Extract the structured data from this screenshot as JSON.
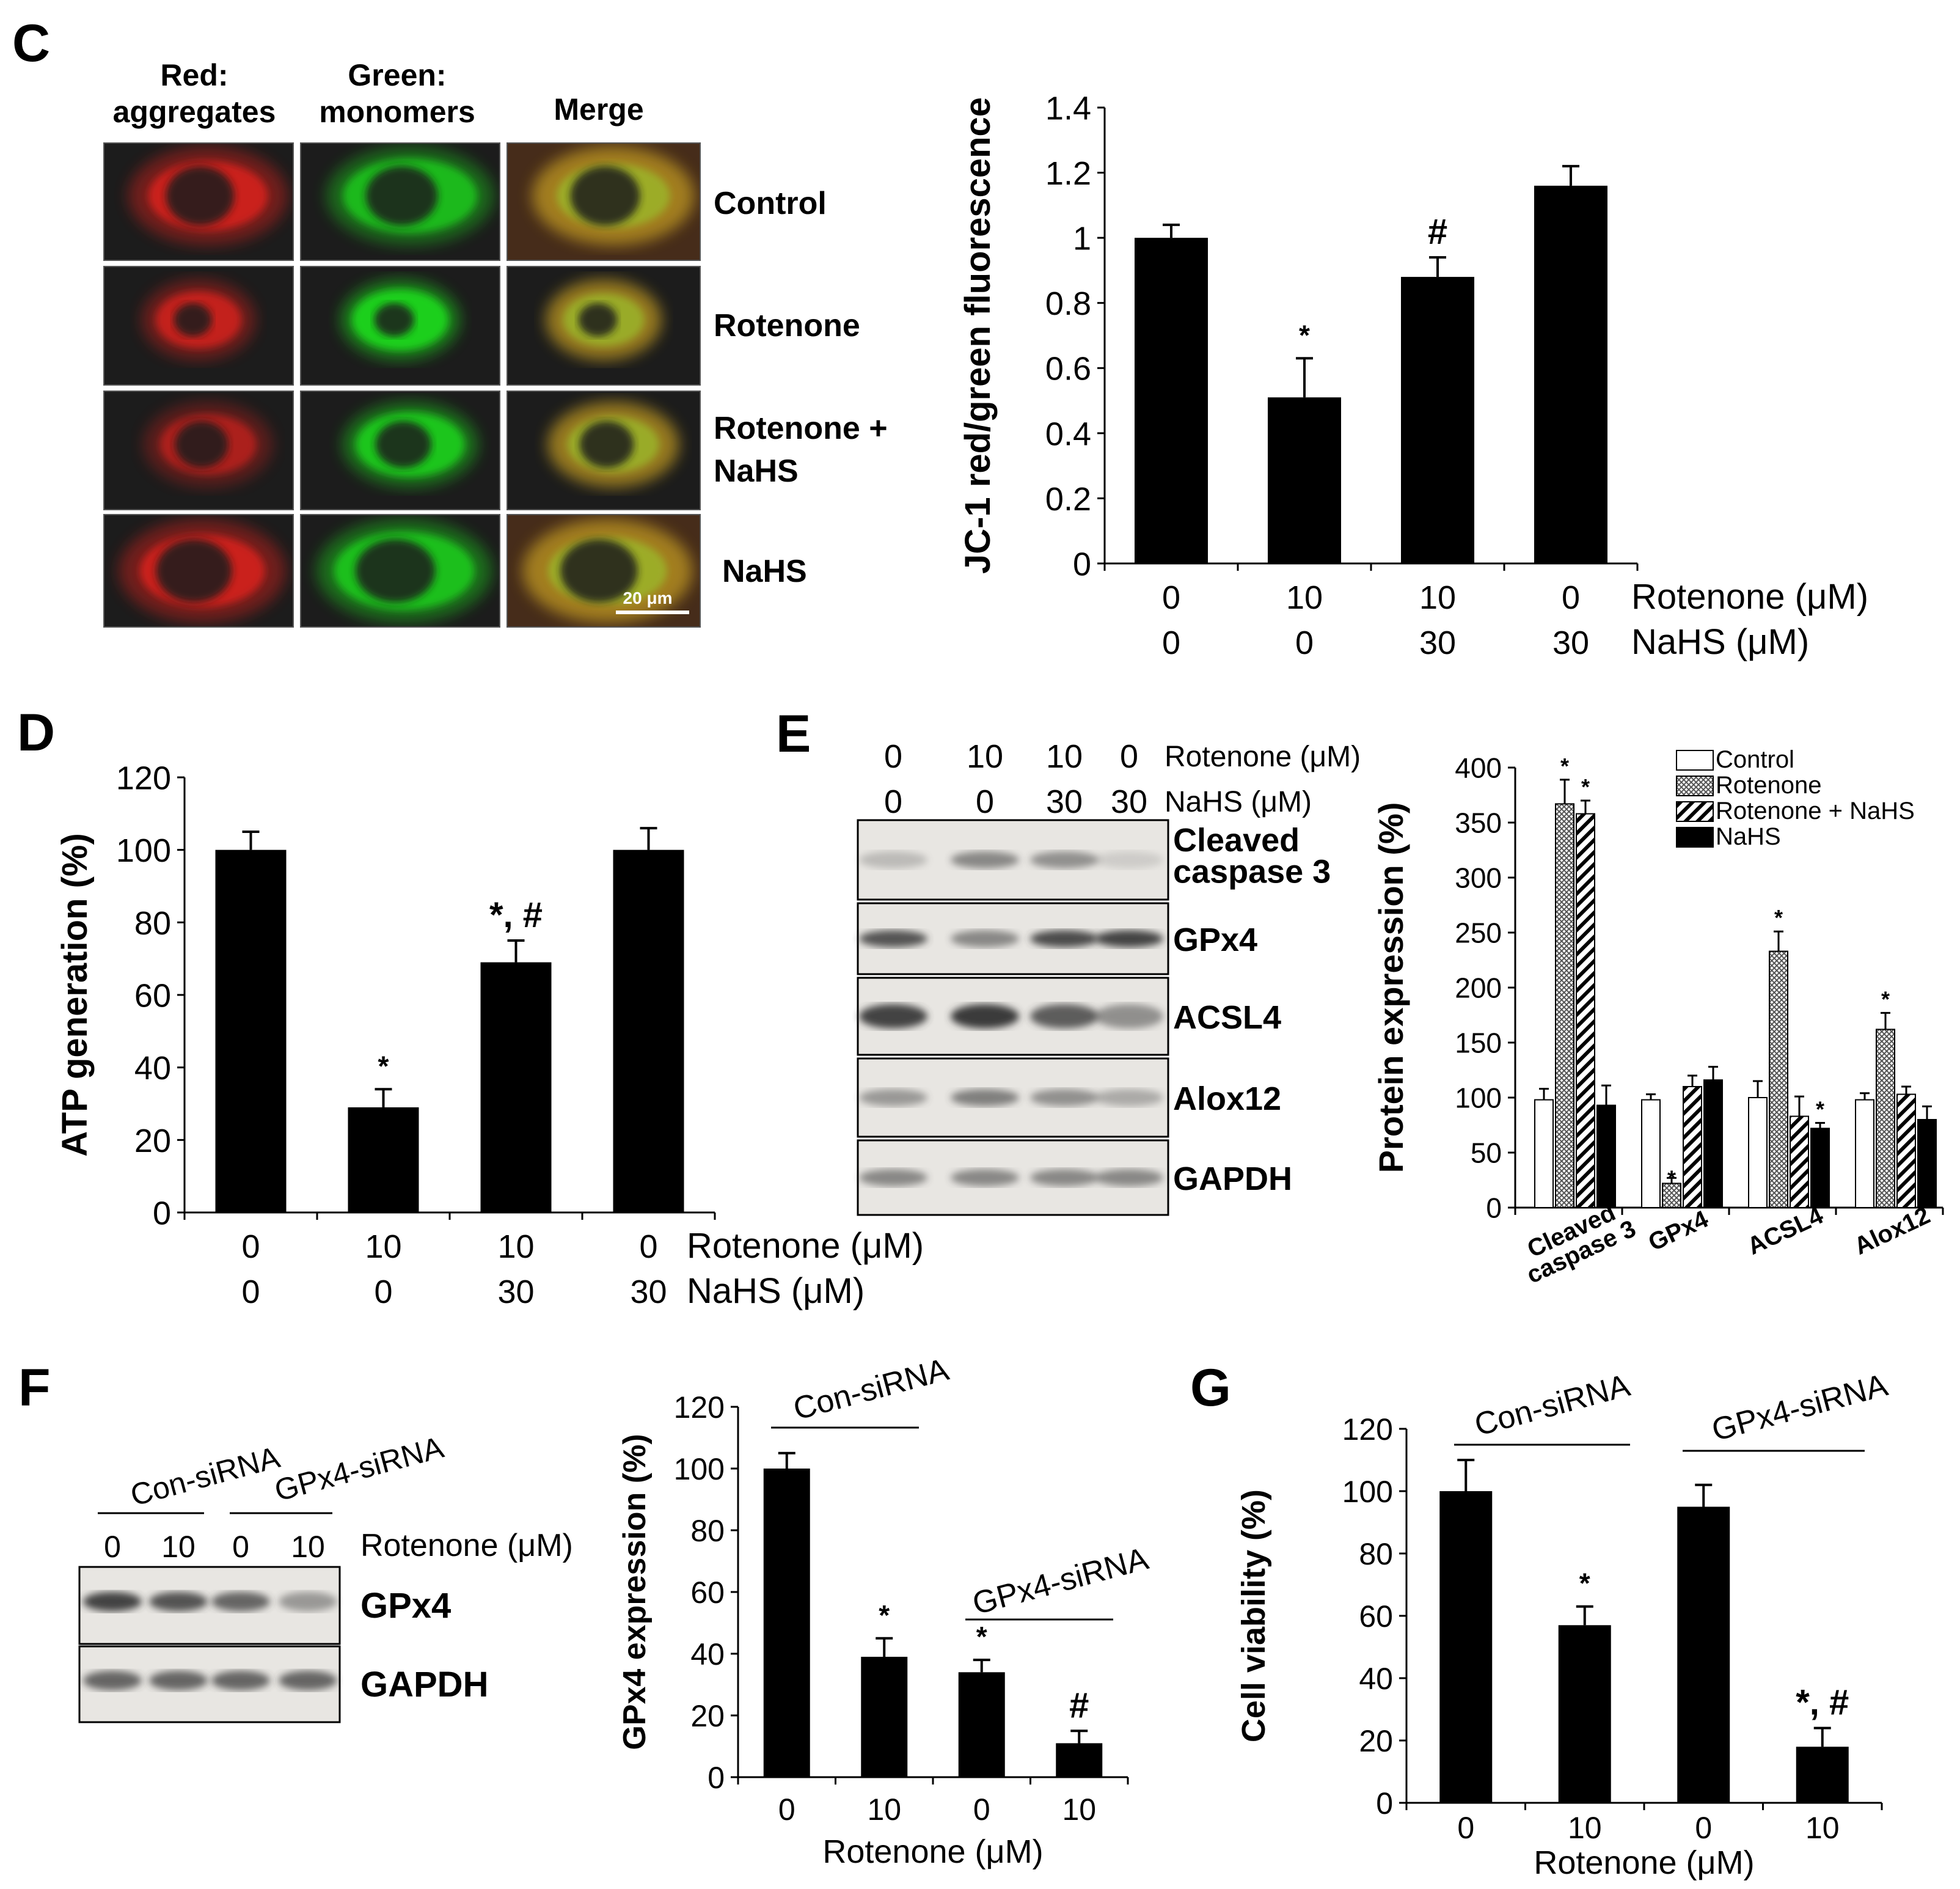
{
  "panels": {
    "C": {
      "letter": "C",
      "image_columns": [
        "Red:\naggregates",
        "Green:\nmonomers",
        "Merge"
      ],
      "row_labels": [
        "Control",
        "Rotenone",
        "Rotenone +\nNaHS",
        "NaHS"
      ],
      "scale_bar": "20 μm"
    },
    "D": {
      "letter": "D"
    },
    "E": {
      "letter": "E",
      "blot_conditions": [
        {
          "label": "Rotenone (μM)",
          "values": [
            "0",
            "10",
            "10",
            "0"
          ]
        },
        {
          "label": "NaHS (μM)",
          "values": [
            "0",
            "0",
            "30",
            "30"
          ]
        }
      ],
      "blot_labels": [
        "Cleaved\ncaspase 3",
        "GPx4",
        "ACSL4",
        "Alox12",
        "GAPDH"
      ]
    },
    "F": {
      "letter": "F",
      "blot_groups": [
        "Con-siRNA",
        "GPx4-siRNA"
      ],
      "blot_lanes": [
        "0",
        "10",
        "0",
        "10"
      ],
      "blot_condition_label": "Rotenone (μM)",
      "blot_labels": [
        "GPx4",
        "GAPDH"
      ]
    },
    "G": {
      "letter": "G"
    }
  },
  "chart_data": [
    {
      "id": "C",
      "type": "bar",
      "ylabel": "JC-1 red/green fluorescence",
      "ylim": [
        0,
        1.4
      ],
      "yticks": [
        "0",
        "0.2",
        "0.4",
        "0.6",
        "0.8",
        "1",
        "1.2",
        "1.4"
      ],
      "condition_rows": [
        {
          "label": "Rotenone (μM)",
          "values": [
            "0",
            "10",
            "10",
            "0"
          ]
        },
        {
          "label": "NaHS (μM)",
          "values": [
            "0",
            "0",
            "30",
            "30"
          ]
        }
      ],
      "values": [
        1.0,
        0.51,
        0.88,
        1.16
      ],
      "errors": [
        0.04,
        0.12,
        0.06,
        0.06
      ],
      "annotations": [
        "",
        "*",
        "#",
        ""
      ]
    },
    {
      "id": "D",
      "type": "bar",
      "ylabel": "ATP generation (%)",
      "ylim": [
        0,
        120
      ],
      "yticks": [
        "0",
        "20",
        "40",
        "60",
        "80",
        "100",
        "120"
      ],
      "condition_rows": [
        {
          "label": "Rotenone (μM)",
          "values": [
            "0",
            "10",
            "10",
            "0"
          ]
        },
        {
          "label": "NaHS (μM)",
          "values": [
            "0",
            "0",
            "30",
            "30"
          ]
        }
      ],
      "values": [
        100,
        29,
        69,
        100
      ],
      "errors": [
        5,
        5,
        6,
        6
      ],
      "annotations": [
        "",
        "*",
        "*, #",
        ""
      ]
    },
    {
      "id": "E",
      "type": "bar",
      "ylabel": "Protein expression (%)",
      "ylim": [
        0,
        400
      ],
      "yticks": [
        "0",
        "50",
        "100",
        "150",
        "200",
        "250",
        "300",
        "350",
        "400"
      ],
      "categories": [
        "Cleaved\ncaspase 3",
        "GPx4",
        "ACSL4",
        "Alox12"
      ],
      "legend": "top-right",
      "series": [
        {
          "name": "Control",
          "values": [
            98,
            98,
            100,
            98
          ],
          "errors": [
            10,
            5,
            15,
            6
          ],
          "annotations": [
            "",
            "",
            "",
            ""
          ],
          "fill": "#ffffff"
        },
        {
          "name": "Rotenone",
          "values": [
            367,
            22,
            233,
            162
          ],
          "errors": [
            22,
            5,
            18,
            15
          ],
          "annotations": [
            "*",
            "*",
            "*",
            "*"
          ],
          "fill": "#c8c8c8"
        },
        {
          "name": "Rotenone + NaHS",
          "values": [
            358,
            110,
            83,
            103
          ],
          "errors": [
            12,
            10,
            18,
            7
          ],
          "annotations": [
            "*",
            "",
            "",
            ""
          ],
          "fill": "hatch"
        },
        {
          "name": "NaHS",
          "values": [
            93,
            116,
            72,
            80
          ],
          "errors": [
            18,
            12,
            5,
            12
          ],
          "annotations": [
            "",
            "",
            "*",
            ""
          ],
          "fill": "#000000"
        }
      ]
    },
    {
      "id": "F",
      "type": "bar",
      "ylabel": "GPx4 expression (%)",
      "xlabel": "Rotenone (μM)",
      "ylim": [
        0,
        120
      ],
      "yticks": [
        "0",
        "20",
        "40",
        "60",
        "80",
        "100",
        "120"
      ],
      "categories": [
        "0",
        "10",
        "0",
        "10"
      ],
      "groups": [
        "Con-siRNA",
        "GPx4-siRNA"
      ],
      "values": [
        100,
        39,
        34,
        11
      ],
      "errors": [
        5,
        6,
        4,
        4
      ],
      "annotations": [
        "",
        "*",
        "*",
        "#"
      ]
    },
    {
      "id": "G",
      "type": "bar",
      "ylabel": "Cell viability (%)",
      "xlabel": "Rotenone (μM)",
      "ylim": [
        0,
        120
      ],
      "yticks": [
        "0",
        "20",
        "40",
        "60",
        "80",
        "100",
        "120"
      ],
      "categories": [
        "0",
        "10",
        "0",
        "10"
      ],
      "groups": [
        "Con-siRNA",
        "GPx4-siRNA"
      ],
      "values": [
        100,
        57,
        95,
        18
      ],
      "errors": [
        10,
        6,
        7,
        6
      ],
      "annotations": [
        "",
        "*",
        "",
        "*, #"
      ]
    }
  ],
  "colors": {
    "bar": "#000000",
    "red_channel": "#e0201c",
    "green_channel": "#1fd41f",
    "image_bg": "#1c1c1c",
    "blot_bg": "#e8e6e2",
    "band": "#3a3a3a"
  }
}
